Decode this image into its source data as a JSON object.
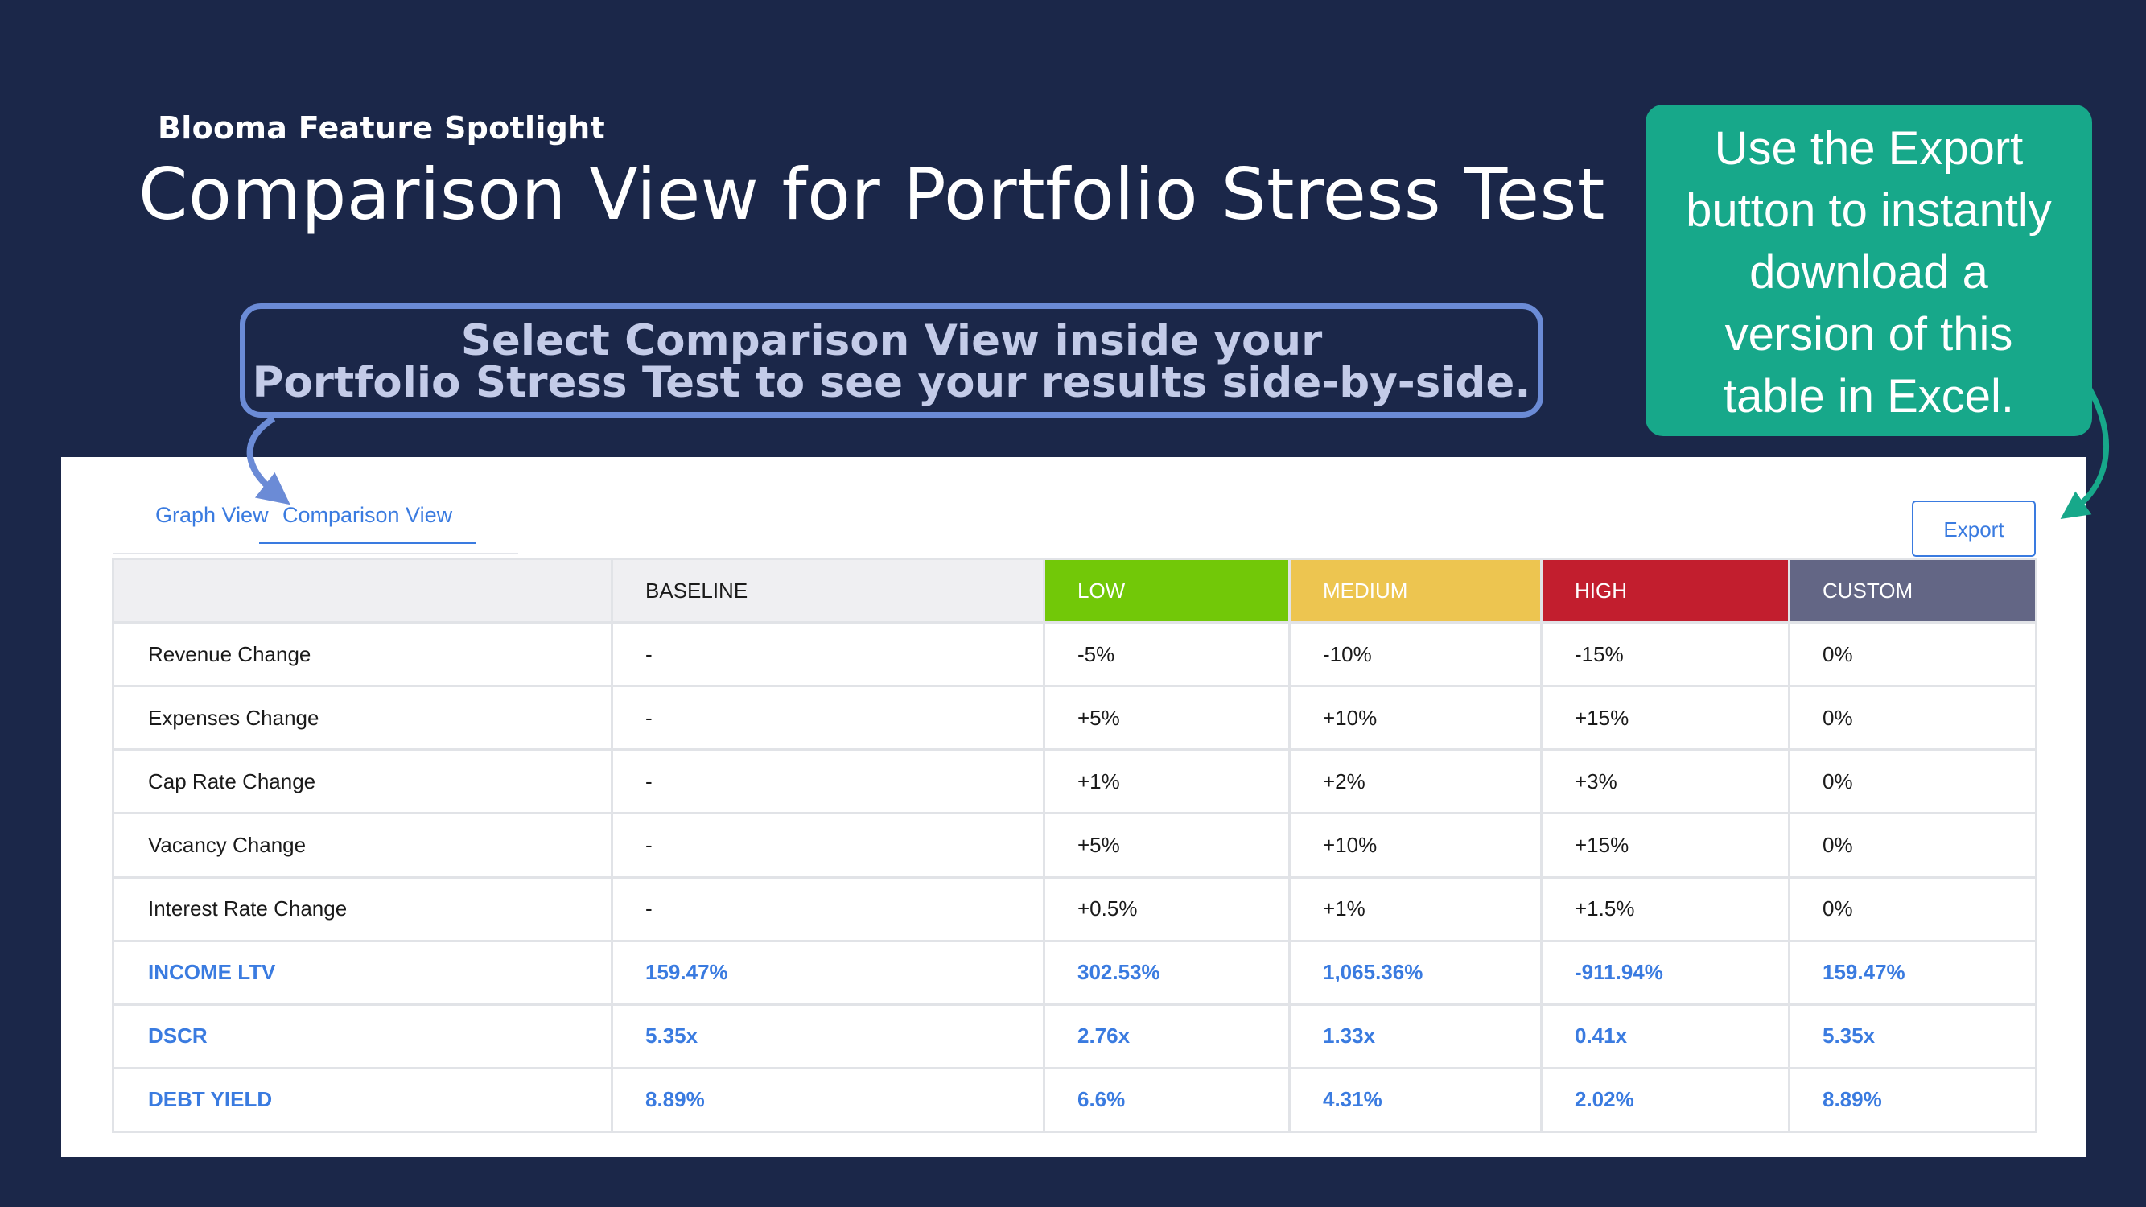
{
  "header": {
    "kicker": "Blooma Feature Spotlight",
    "title": "Comparison View for Portfolio Stress Test"
  },
  "callout": {
    "line1": "Select Comparison View inside your",
    "line2": "Portfolio Stress Test to see your results side-by-side."
  },
  "export_callout": {
    "lines": [
      "Use the Export",
      "button to instantly",
      "download a",
      "version of this",
      "table in Excel."
    ]
  },
  "tabs": [
    {
      "label": "Graph View",
      "active": false
    },
    {
      "label": "Comparison View",
      "active": true
    }
  ],
  "export_button": "Export",
  "table": {
    "columns": [
      "",
      "BASELINE",
      "LOW",
      "MEDIUM",
      "HIGH",
      "CUSTOM"
    ],
    "column_colors": {
      "low": "#72c808",
      "medium": "#edc550",
      "high": "#c21e2e",
      "custom": "#636685"
    },
    "rows": [
      {
        "label": "Revenue Change",
        "values": [
          "-",
          "-5%",
          "-10%",
          "-15%",
          "0%"
        ]
      },
      {
        "label": "Expenses Change",
        "values": [
          "-",
          "+5%",
          "+10%",
          "+15%",
          "0%"
        ]
      },
      {
        "label": "Cap Rate Change",
        "values": [
          "-",
          "+1%",
          "+2%",
          "+3%",
          "0%"
        ]
      },
      {
        "label": "Vacancy Change",
        "values": [
          "-",
          "+5%",
          "+10%",
          "+15%",
          "0%"
        ]
      },
      {
        "label": "Interest Rate Change",
        "values": [
          "-",
          "+0.5%",
          "+1%",
          "+1.5%",
          "0%"
        ]
      },
      {
        "label": "INCOME LTV",
        "values": [
          "159.47%",
          "302.53%",
          "1,065.36%",
          "-911.94%",
          "159.47%"
        ]
      },
      {
        "label": "DSCR",
        "values": [
          "5.35x",
          "2.76x",
          "1.33x",
          "0.41x",
          "5.35x"
        ]
      },
      {
        "label": "DEBT YIELD",
        "values": [
          "8.89%",
          "6.6%",
          "4.31%",
          "2.02%",
          "8.89%"
        ]
      }
    ]
  },
  "colors": {
    "background": "#1b2749",
    "accent": "#3a7be0",
    "callout_border": "#6b8bd6",
    "export_callout": "#17a88a"
  }
}
